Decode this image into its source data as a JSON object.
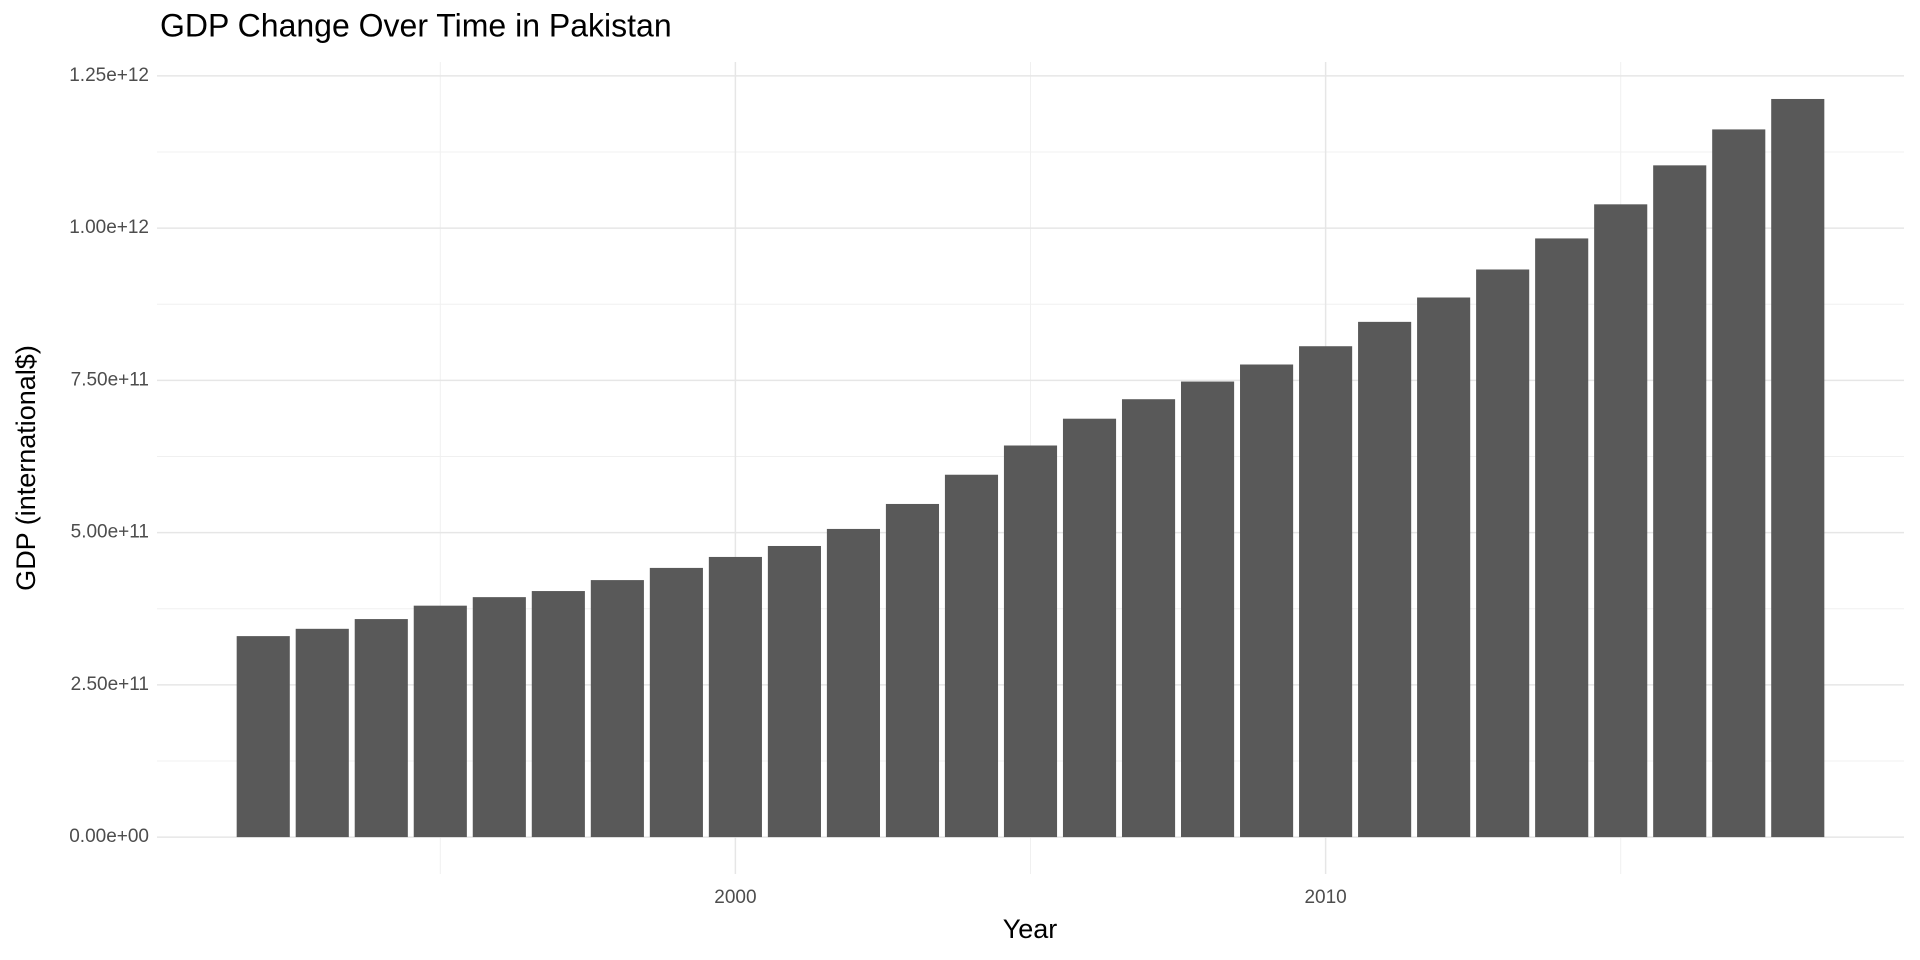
{
  "chart_data": {
    "type": "bar",
    "title": "GDP Change Over Time in Pakistan",
    "x_label": "Year",
    "y_label": "GDP (international$)",
    "x": [
      1992,
      1993,
      1994,
      1995,
      1996,
      1997,
      1998,
      1999,
      2000,
      2001,
      2002,
      2003,
      2004,
      2005,
      2006,
      2007,
      2008,
      2009,
      2010,
      2011,
      2012,
      2013,
      2014,
      2015,
      2016,
      2017,
      2018
    ],
    "values": [
      330000000000,
      342000000000,
      358000000000,
      380000000000,
      394000000000,
      404000000000,
      422000000000,
      442000000000,
      460000000000,
      478000000000,
      506000000000,
      547000000000,
      595000000000,
      643000000000,
      687000000000,
      719000000000,
      748000000000,
      776000000000,
      806000000000,
      846000000000,
      886000000000,
      932000000000,
      983000000000,
      1039000000000,
      1103000000000,
      1162000000000,
      1212000000000
    ],
    "color": "#595959",
    "xlim": [
      1990.2,
      2019.8
    ],
    "xticks": [
      2000,
      2010
    ],
    "xminor": [
      1995,
      2005,
      2015
    ],
    "ylim": [
      -60600000000,
      1272700000000
    ],
    "yticks": [
      {
        "value": 0,
        "label": "0.00e+00"
      },
      {
        "value": 250000000000,
        "label": "2.50e+11"
      },
      {
        "value": 500000000000,
        "label": "5.00e+11"
      },
      {
        "value": 750000000000,
        "label": "7.50e+11"
      },
      {
        "value": 1000000000000,
        "label": "1.00e+12"
      },
      {
        "value": 1250000000000,
        "label": "1.25e+12"
      }
    ],
    "yminor": [
      125000000000,
      375000000000,
      625000000000,
      875000000000,
      1125000000000
    ],
    "grid": true
  }
}
